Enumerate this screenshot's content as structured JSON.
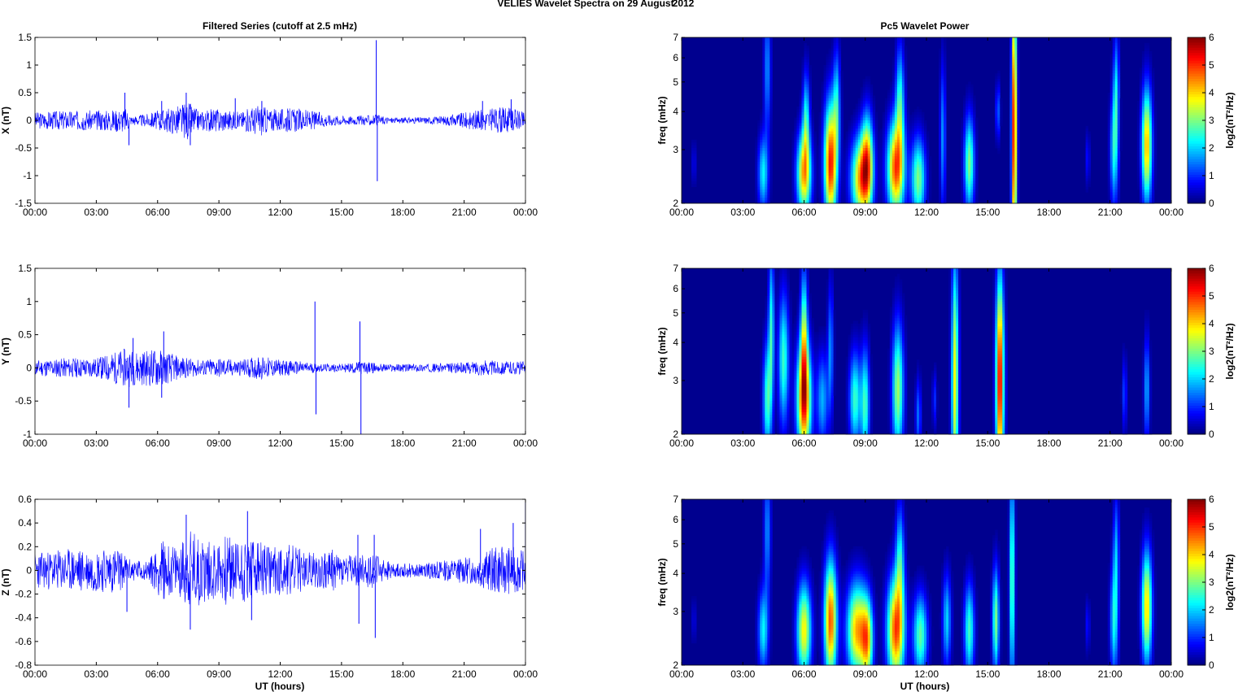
{
  "figure": {
    "title_left": "VELIES Wavelet Spectra on 29 August",
    "title_right": "2012",
    "left_title": "Filtered Series (cutoff at 2.5 mHz)",
    "right_title": "Pc5 Wavelet Power",
    "xlabel": "UT (hours)",
    "time_ticks": [
      "00:00",
      "03:00",
      "06:00",
      "09:00",
      "12:00",
      "15:00",
      "18:00",
      "21:00",
      "00:00"
    ],
    "colors": {
      "trace": "#0000ff",
      "axis": "#000000",
      "background": "#00008f"
    }
  },
  "chart_data": [
    {
      "type": "line",
      "name": "X series",
      "ylabel": "X (nT)",
      "xlim": [
        0,
        24
      ],
      "ylim": [
        -1.5,
        1.5
      ],
      "yticks": [
        "1.5",
        "1",
        "0.5",
        "0",
        "-0.5",
        "-1",
        "-1.5"
      ],
      "yvals": [
        1.5,
        1,
        0.5,
        0,
        -0.5,
        -1,
        -1.5
      ],
      "envelope": [
        [
          0,
          0.15
        ],
        [
          1.5,
          0.18
        ],
        [
          3,
          0.18
        ],
        [
          4.5,
          0.22
        ],
        [
          4.7,
          0.08
        ],
        [
          5.5,
          0.12
        ],
        [
          6,
          0.18
        ],
        [
          6.8,
          0.25
        ],
        [
          7.5,
          0.35
        ],
        [
          8,
          0.18
        ],
        [
          9,
          0.22
        ],
        [
          10,
          0.15
        ],
        [
          11,
          0.3
        ],
        [
          11.5,
          0.2
        ],
        [
          12.5,
          0.22
        ],
        [
          13.5,
          0.18
        ],
        [
          14.5,
          0.1
        ],
        [
          15.5,
          0.08
        ],
        [
          16.7,
          0.1
        ],
        [
          17.5,
          0.05
        ],
        [
          19,
          0.06
        ],
        [
          20,
          0.08
        ],
        [
          21,
          0.15
        ],
        [
          22,
          0.2
        ],
        [
          23,
          0.25
        ],
        [
          24,
          0.15
        ]
      ],
      "spikes": [
        [
          4.4,
          0.5
        ],
        [
          4.6,
          -0.45
        ],
        [
          6.2,
          0.35
        ],
        [
          7.4,
          0.5
        ],
        [
          7.6,
          -0.45
        ],
        [
          9.8,
          0.4
        ],
        [
          11.1,
          0.35
        ],
        [
          16.7,
          1.45
        ],
        [
          16.75,
          -1.1
        ],
        [
          21.9,
          0.35
        ],
        [
          23.3,
          0.38
        ],
        [
          24,
          0.5
        ]
      ],
      "seed": 3
    },
    {
      "type": "line",
      "name": "Y series",
      "ylabel": "Y (nT)",
      "xlim": [
        0,
        24
      ],
      "ylim": [
        -1,
        1.5
      ],
      "yticks": [
        "1.5",
        "1",
        "0.5",
        "0",
        "-0.5",
        "-1"
      ],
      "yvals": [
        1.5,
        1,
        0.5,
        0,
        -0.5,
        -1
      ],
      "envelope": [
        [
          0,
          0.12
        ],
        [
          1.5,
          0.15
        ],
        [
          3,
          0.15
        ],
        [
          4.5,
          0.3
        ],
        [
          5,
          0.25
        ],
        [
          6,
          0.3
        ],
        [
          7,
          0.18
        ],
        [
          8,
          0.12
        ],
        [
          9,
          0.15
        ],
        [
          10,
          0.12
        ],
        [
          11,
          0.18
        ],
        [
          12,
          0.12
        ],
        [
          13,
          0.1
        ],
        [
          14,
          0.06
        ],
        [
          15,
          0.06
        ],
        [
          16,
          0.1
        ],
        [
          17,
          0.06
        ],
        [
          19,
          0.06
        ],
        [
          21,
          0.08
        ],
        [
          22,
          0.12
        ],
        [
          23,
          0.1
        ],
        [
          24,
          0.1
        ]
      ],
      "spikes": [
        [
          4.6,
          -0.6
        ],
        [
          4.8,
          0.45
        ],
        [
          6.3,
          0.55
        ],
        [
          6.2,
          -0.45
        ],
        [
          13.7,
          1.0
        ],
        [
          13.75,
          -0.7
        ],
        [
          15.9,
          0.7
        ],
        [
          15.95,
          -1.0
        ]
      ],
      "seed": 11
    },
    {
      "type": "line",
      "name": "Z series",
      "ylabel": "Z (nT)",
      "xlim": [
        0,
        24
      ],
      "ylim": [
        -0.8,
        0.6
      ],
      "yticks": [
        "0.6",
        "0.4",
        "0.2",
        "0",
        "-0.2",
        "-0.4",
        "-0.6",
        "-0.8"
      ],
      "yvals": [
        0.6,
        0.4,
        0.2,
        0,
        -0.2,
        -0.4,
        -0.6,
        -0.8
      ],
      "envelope": [
        [
          0,
          0.15
        ],
        [
          1.5,
          0.18
        ],
        [
          3,
          0.18
        ],
        [
          4,
          0.2
        ],
        [
          4.6,
          0.1
        ],
        [
          5.5,
          0.08
        ],
        [
          6.2,
          0.25
        ],
        [
          7,
          0.2
        ],
        [
          7.6,
          0.35
        ],
        [
          8.5,
          0.25
        ],
        [
          9.5,
          0.3
        ],
        [
          10.5,
          0.28
        ],
        [
          11.5,
          0.2
        ],
        [
          12.5,
          0.22
        ],
        [
          13.5,
          0.15
        ],
        [
          14.5,
          0.18
        ],
        [
          15.5,
          0.12
        ],
        [
          16.5,
          0.15
        ],
        [
          17.5,
          0.06
        ],
        [
          19,
          0.06
        ],
        [
          20.5,
          0.1
        ],
        [
          21.5,
          0.12
        ],
        [
          22.5,
          0.2
        ],
        [
          23.5,
          0.2
        ],
        [
          24,
          0.15
        ]
      ],
      "spikes": [
        [
          4.5,
          -0.35
        ],
        [
          7.4,
          0.47
        ],
        [
          7.6,
          -0.5
        ],
        [
          10.4,
          0.5
        ],
        [
          10.6,
          -0.42
        ],
        [
          15.8,
          0.3
        ],
        [
          15.85,
          -0.45
        ],
        [
          16.6,
          0.3
        ],
        [
          16.65,
          -0.57
        ],
        [
          21.8,
          0.35
        ],
        [
          23.4,
          0.4
        ],
        [
          24,
          0.6
        ]
      ],
      "seed": 23
    },
    {
      "type": "heatmap",
      "name": "X wavelet power",
      "ylabel": "freq (mHz)",
      "yscale": "log",
      "ylim": [
        2,
        7
      ],
      "yticks": [
        "7",
        "6",
        "5",
        "4",
        "3",
        "2"
      ],
      "yvals": [
        7,
        6,
        5,
        4,
        3,
        2
      ],
      "zlim": [
        0,
        6
      ],
      "colorbar_ticks": [
        "6",
        "5",
        "4",
        "3",
        "2",
        "1",
        "0"
      ],
      "colorbar_label": "log2(nT²/Hz)",
      "blobs": [
        [
          0.6,
          2.7,
          0.05,
          0.12,
          1.0
        ],
        [
          4.0,
          2.5,
          0.18,
          0.2,
          2.2
        ],
        [
          4.2,
          5.5,
          0.12,
          0.35,
          1.6
        ],
        [
          6.0,
          2.5,
          0.25,
          0.22,
          4.2
        ],
        [
          6.1,
          3.8,
          0.12,
          0.25,
          2.2
        ],
        [
          7.3,
          2.7,
          0.22,
          0.32,
          5.2
        ],
        [
          7.6,
          4.2,
          0.12,
          0.3,
          2.0
        ],
        [
          8.8,
          2.4,
          0.35,
          0.22,
          4.2
        ],
        [
          9.1,
          2.8,
          0.2,
          0.25,
          3.2
        ],
        [
          10.5,
          2.6,
          0.3,
          0.25,
          4.8
        ],
        [
          10.7,
          4.3,
          0.15,
          0.3,
          2.4
        ],
        [
          11.6,
          2.4,
          0.25,
          0.22,
          3.0
        ],
        [
          12.8,
          3.3,
          0.1,
          0.4,
          1.6
        ],
        [
          14.1,
          2.7,
          0.18,
          0.25,
          3.0
        ],
        [
          15.5,
          4.0,
          0.08,
          0.15,
          1.4
        ],
        [
          16.3,
          3.5,
          0.09,
          0.8,
          5.5
        ],
        [
          19.9,
          2.8,
          0.07,
          0.14,
          0.9
        ],
        [
          21.2,
          3.0,
          0.14,
          0.3,
          2.3
        ],
        [
          21.3,
          4.8,
          0.1,
          0.3,
          1.8
        ],
        [
          22.8,
          3.1,
          0.18,
          0.3,
          4.2
        ]
      ],
      "seed": 5
    },
    {
      "type": "heatmap",
      "name": "Y wavelet power",
      "ylabel": "freq (mHz)",
      "yscale": "log",
      "ylim": [
        2,
        7
      ],
      "yticks": [
        "7",
        "6",
        "5",
        "4",
        "3",
        "2"
      ],
      "yvals": [
        7,
        6,
        5,
        4,
        3,
        2
      ],
      "zlim": [
        0,
        6
      ],
      "colorbar_ticks": [
        "6",
        "5",
        "4",
        "3",
        "2",
        "1",
        "0"
      ],
      "colorbar_label": "log2(nT²/Hz)",
      "blobs": [
        [
          4.2,
          2.6,
          0.15,
          0.3,
          2.6
        ],
        [
          4.4,
          4.5,
          0.1,
          0.4,
          2.4
        ],
        [
          5.0,
          3.5,
          0.18,
          0.35,
          2.6
        ],
        [
          6.0,
          2.6,
          0.25,
          0.3,
          5.0
        ],
        [
          6.0,
          4.3,
          0.12,
          0.35,
          2.8
        ],
        [
          6.9,
          2.6,
          0.2,
          0.25,
          1.8
        ],
        [
          7.3,
          3.8,
          0.1,
          0.35,
          1.6
        ],
        [
          8.5,
          2.6,
          0.2,
          0.25,
          2.6
        ],
        [
          9.0,
          2.5,
          0.15,
          0.3,
          2.6
        ],
        [
          10.6,
          2.8,
          0.2,
          0.35,
          3.2
        ],
        [
          11.6,
          2.3,
          0.1,
          0.2,
          1.4
        ],
        [
          12.4,
          2.6,
          0.08,
          0.15,
          1.0
        ],
        [
          13.4,
          3.0,
          0.12,
          0.65,
          3.8
        ],
        [
          15.6,
          3.0,
          0.14,
          0.55,
          5.5
        ],
        [
          21.7,
          2.7,
          0.08,
          0.2,
          1.2
        ],
        [
          22.8,
          2.8,
          0.1,
          0.28,
          1.8
        ]
      ],
      "seed": 17
    },
    {
      "type": "heatmap",
      "name": "Z wavelet power",
      "ylabel": "freq (mHz)",
      "yscale": "log",
      "ylim": [
        2,
        7
      ],
      "yticks": [
        "7",
        "6",
        "5",
        "4",
        "3",
        "2"
      ],
      "yvals": [
        7,
        6,
        5,
        4,
        3,
        2
      ],
      "zlim": [
        0,
        6
      ],
      "colorbar_ticks": [
        "6",
        "5",
        "4",
        "3",
        "2",
        "1",
        "0"
      ],
      "colorbar_label": "log2(nT²/Hz)",
      "blobs": [
        [
          0.6,
          2.8,
          0.05,
          0.12,
          0.9
        ],
        [
          4.0,
          2.6,
          0.18,
          0.22,
          2.2
        ],
        [
          4.2,
          5.5,
          0.12,
          0.35,
          1.6
        ],
        [
          6.0,
          2.6,
          0.25,
          0.25,
          3.8
        ],
        [
          7.3,
          2.8,
          0.22,
          0.32,
          4.8
        ],
        [
          8.6,
          2.6,
          0.35,
          0.25,
          4.2
        ],
        [
          9.1,
          2.4,
          0.2,
          0.22,
          3.4
        ],
        [
          10.5,
          2.6,
          0.3,
          0.28,
          4.8
        ],
        [
          10.7,
          4.4,
          0.15,
          0.3,
          2.2
        ],
        [
          11.7,
          2.5,
          0.25,
          0.22,
          2.8
        ],
        [
          13.0,
          2.8,
          0.15,
          0.25,
          2.0
        ],
        [
          14.1,
          2.6,
          0.18,
          0.25,
          2.6
        ],
        [
          15.4,
          2.8,
          0.12,
          0.28,
          3.0
        ],
        [
          16.2,
          3.8,
          0.09,
          0.6,
          3.0
        ],
        [
          19.9,
          2.7,
          0.07,
          0.14,
          0.9
        ],
        [
          21.2,
          2.8,
          0.14,
          0.3,
          2.3
        ],
        [
          21.3,
          4.8,
          0.1,
          0.3,
          1.6
        ],
        [
          22.8,
          3.1,
          0.18,
          0.3,
          4.0
        ]
      ],
      "seed": 29
    }
  ]
}
